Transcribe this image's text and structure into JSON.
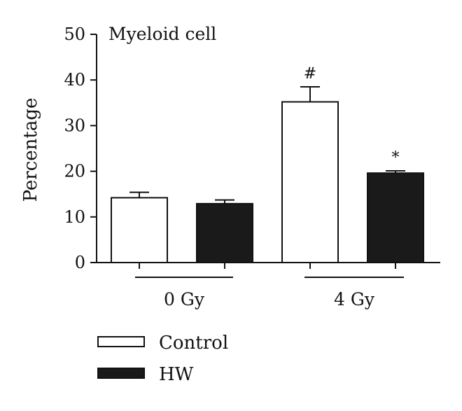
{
  "chart_data": {
    "type": "bar",
    "title": "Myeloid cell",
    "ylabel": "Percentage",
    "xlabel": "",
    "ylim": [
      0,
      50
    ],
    "yticks": [
      0,
      10,
      20,
      30,
      40,
      50
    ],
    "groups": [
      "0 Gy",
      "4 Gy"
    ],
    "series": [
      {
        "name": "Control",
        "values": [
          14.2,
          35.2
        ],
        "errors": [
          1.2,
          3.3
        ],
        "color": "#ffffff"
      },
      {
        "name": "HW",
        "values": [
          12.9,
          19.6
        ],
        "errors": [
          0.8,
          0.5
        ],
        "color": "#1a1a1a"
      }
    ],
    "annotations": [
      {
        "group": 1,
        "series": 0,
        "text": "#"
      },
      {
        "group": 1,
        "series": 1,
        "text": "*"
      }
    ],
    "legend_position": "bottom-left",
    "grid": false
  }
}
